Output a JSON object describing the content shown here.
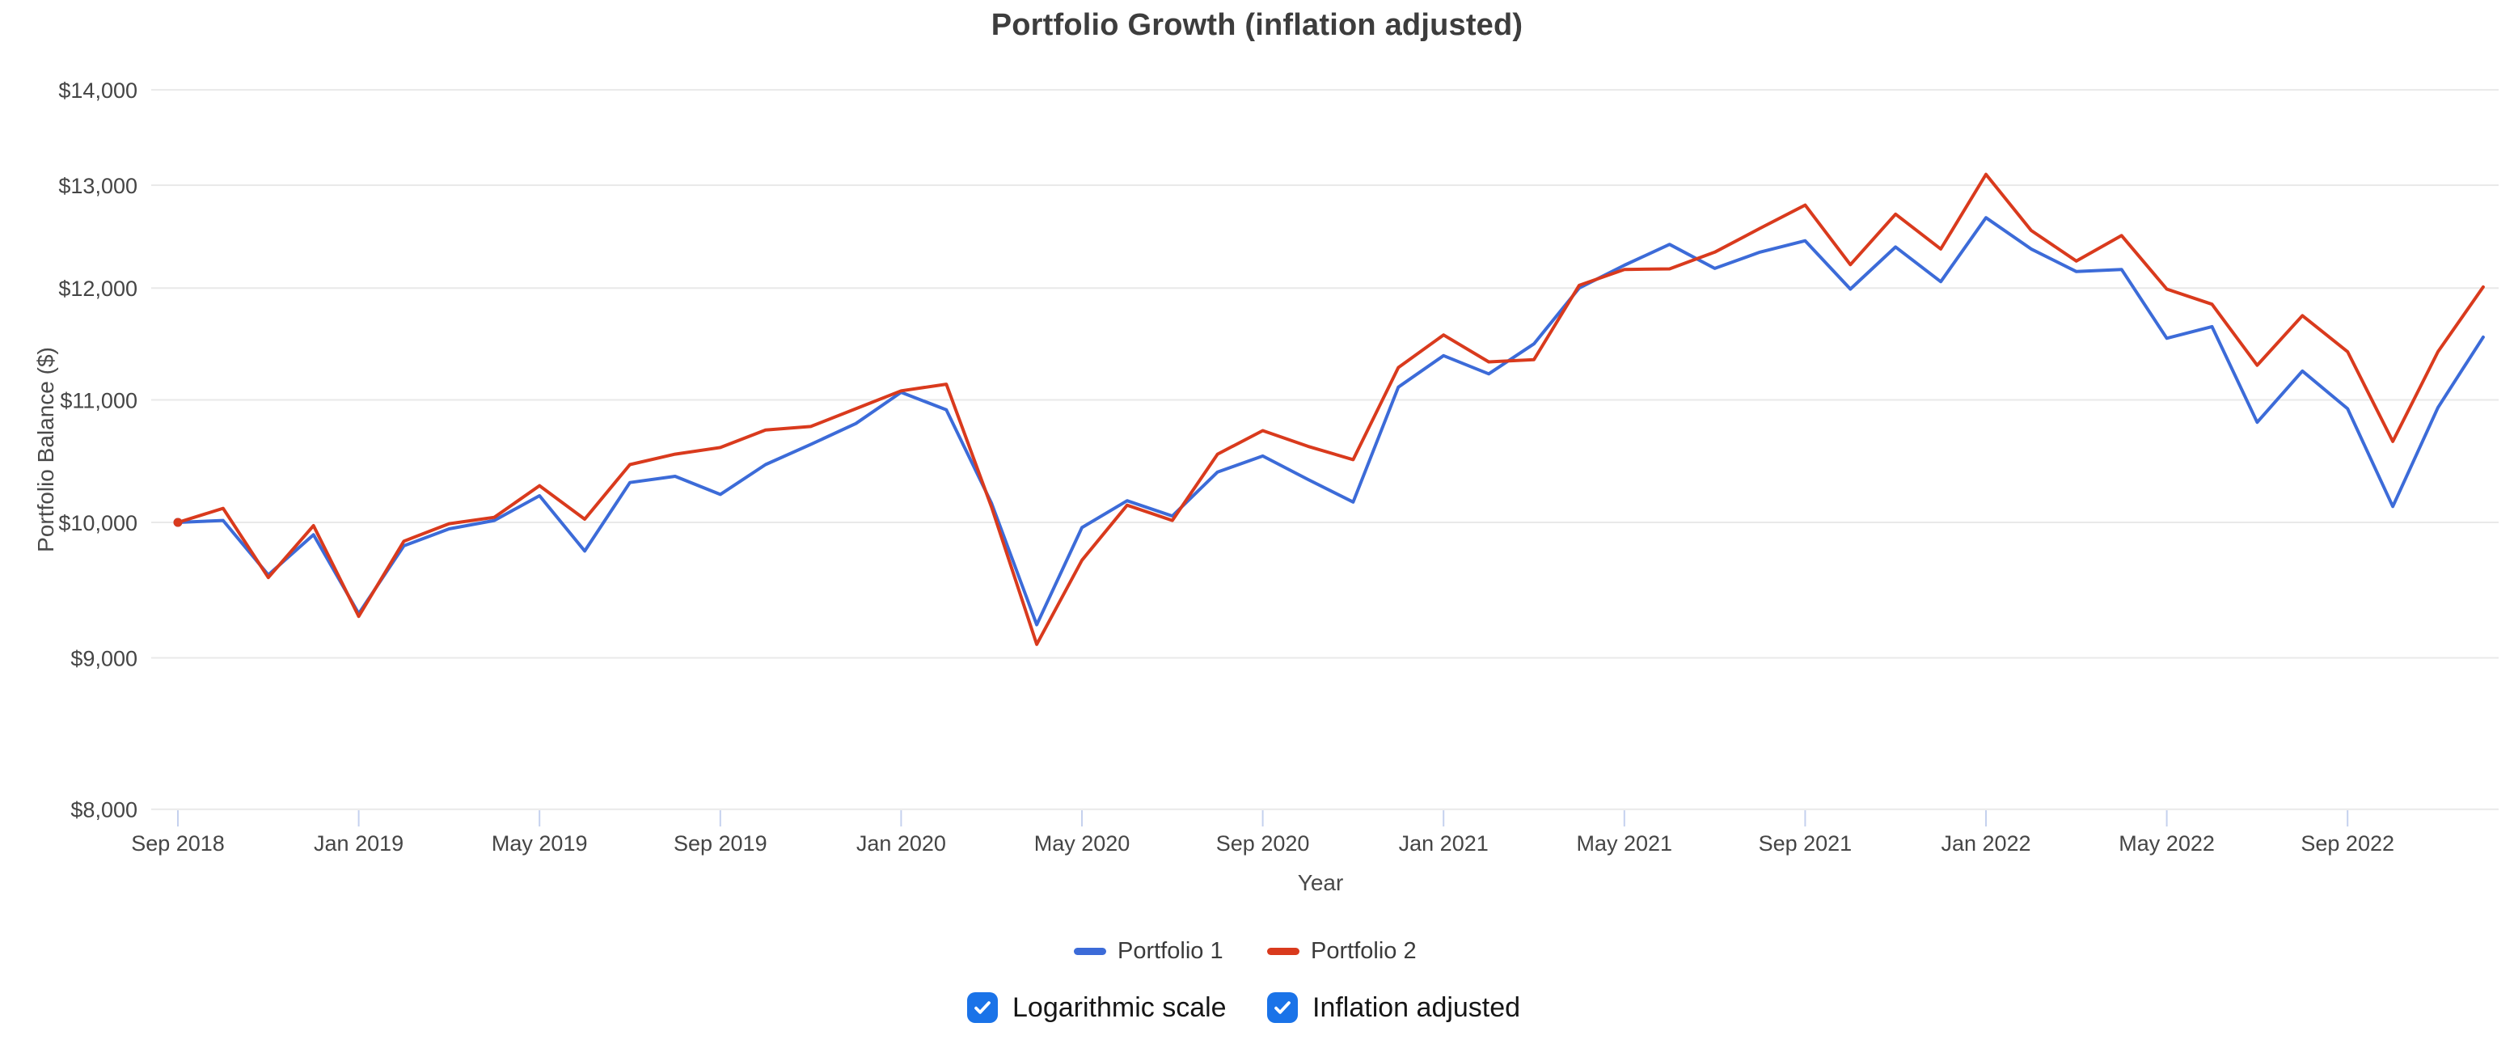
{
  "title": "Portfolio Growth (inflation adjusted)",
  "axes": {
    "x_title": "Year",
    "y_title": "Portfolio Balance ($)"
  },
  "legend": {
    "items": [
      {
        "label": "Portfolio 1",
        "color": "#3c6bd8"
      },
      {
        "label": "Portfolio 2",
        "color": "#d93a1d"
      }
    ]
  },
  "controls": {
    "accent_color": "#1a73e8",
    "checkboxes": [
      {
        "label": "Logarithmic scale",
        "checked": true
      },
      {
        "label": "Inflation adjusted",
        "checked": true
      }
    ]
  },
  "style": {
    "grid_color": "#e9e9e9",
    "tick_mark_color": "#c5d1ee",
    "axis_text_color": "#454545",
    "title_color": "#3d3d3d"
  },
  "chart_data": {
    "type": "line",
    "title": "Portfolio Growth (inflation adjusted)",
    "xlabel": "Year",
    "ylabel": "Portfolio Balance ($)",
    "y_scale": "logarithmic",
    "ylim": [
      8000,
      14000
    ],
    "grid": true,
    "legend_position": "bottom",
    "y_ticks": [
      {
        "value": 8000,
        "label": "$8,000"
      },
      {
        "value": 9000,
        "label": "$9,000"
      },
      {
        "value": 10000,
        "label": "$10,000"
      },
      {
        "value": 11000,
        "label": "$11,000"
      },
      {
        "value": 12000,
        "label": "$12,000"
      },
      {
        "value": 13000,
        "label": "$13,000"
      },
      {
        "value": 14000,
        "label": "$14,000"
      }
    ],
    "x_ticks": [
      {
        "month": 0,
        "label": "Sep 2018"
      },
      {
        "month": 4,
        "label": "Jan 2019"
      },
      {
        "month": 8,
        "label": "May 2019"
      },
      {
        "month": 12,
        "label": "Sep 2019"
      },
      {
        "month": 16,
        "label": "Jan 2020"
      },
      {
        "month": 20,
        "label": "May 2020"
      },
      {
        "month": 24,
        "label": "Sep 2020"
      },
      {
        "month": 28,
        "label": "Jan 2021"
      },
      {
        "month": 32,
        "label": "May 2021"
      },
      {
        "month": 36,
        "label": "Sep 2021"
      },
      {
        "month": 40,
        "label": "Jan 2022"
      },
      {
        "month": 44,
        "label": "May 2022"
      },
      {
        "month": 48,
        "label": "Sep 2022"
      }
    ],
    "x": [
      "Sep 2018",
      "Oct 2018",
      "Nov 2018",
      "Dec 2018",
      "Jan 2019",
      "Feb 2019",
      "Mar 2019",
      "Apr 2019",
      "May 2019",
      "Jun 2019",
      "Jul 2019",
      "Aug 2019",
      "Sep 2019",
      "Oct 2019",
      "Nov 2019",
      "Dec 2019",
      "Jan 2020",
      "Feb 2020",
      "Mar 2020",
      "Apr 2020",
      "May 2020",
      "Jun 2020",
      "Jul 2020",
      "Aug 2020",
      "Sep 2020",
      "Oct 2020",
      "Nov 2020",
      "Dec 2020",
      "Jan 2021",
      "Feb 2021",
      "Mar 2021",
      "Apr 2021",
      "May 2021",
      "Jun 2021",
      "Jul 2021",
      "Aug 2021",
      "Sep 2021",
      "Oct 2021",
      "Nov 2021",
      "Dec 2021",
      "Jan 2022",
      "Feb 2022",
      "Mar 2022",
      "Apr 2022",
      "May 2022",
      "Jun 2022",
      "Jul 2022",
      "Aug 2022",
      "Sep 2022",
      "Oct 2022",
      "Nov 2022",
      "Dec 2022"
    ],
    "series": [
      {
        "name": "Portfolio 1",
        "color": "#3c6bd8",
        "values": [
          10000,
          10015,
          9600,
          9905,
          9315,
          9820,
          9950,
          10015,
          10210,
          9780,
          10315,
          10365,
          10220,
          10460,
          10625,
          10800,
          11065,
          10915,
          10150,
          9235,
          9960,
          10170,
          10050,
          10400,
          10530,
          10340,
          10160,
          11110,
          11385,
          11225,
          11490,
          12000,
          12215,
          12415,
          12185,
          12340,
          12450,
          11990,
          12390,
          12060,
          12675,
          12370,
          12155,
          12175,
          11540,
          11645,
          10810,
          11250,
          10925,
          10125,
          10935,
          11550
        ]
      },
      {
        "name": "Portfolio 2",
        "color": "#d93a1d",
        "values": [
          10000,
          10110,
          9580,
          9975,
          9295,
          9855,
          9990,
          10040,
          10290,
          10025,
          10460,
          10545,
          10600,
          10745,
          10775,
          10925,
          11078,
          11135,
          10120,
          9095,
          9710,
          10135,
          10015,
          10545,
          10740,
          10610,
          10500,
          11280,
          11570,
          11330,
          11350,
          12025,
          12175,
          12180,
          12340,
          12570,
          12800,
          12220,
          12710,
          12370,
          13110,
          12550,
          12255,
          12500,
          11990,
          11850,
          11300,
          11745,
          11420,
          10650,
          11420,
          12010
        ]
      }
    ]
  }
}
